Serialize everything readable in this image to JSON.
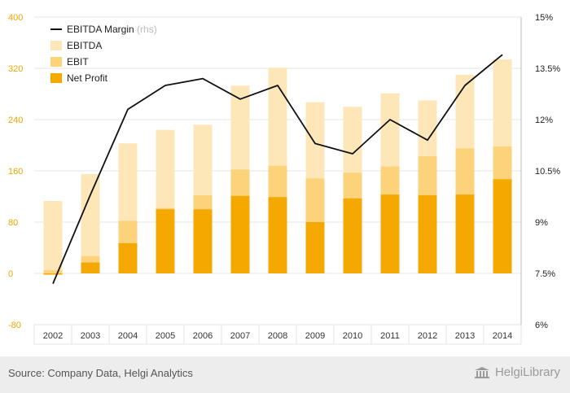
{
  "chart_data": {
    "type": "bar",
    "categories": [
      "2002",
      "2003",
      "2004",
      "2005",
      "2006",
      "2007",
      "2008",
      "2009",
      "2010",
      "2011",
      "2012",
      "2013",
      "2014"
    ],
    "series": [
      {
        "name": "EBITDA",
        "type": "bar",
        "color": "#fde7b8",
        "values": [
          113,
          155,
          203,
          224,
          232,
          293,
          321,
          267,
          260,
          281,
          270,
          310,
          334
        ]
      },
      {
        "name": "EBIT",
        "type": "bar",
        "color": "#fcd27a",
        "values": [
          5,
          27,
          82,
          102,
          122,
          162,
          168,
          148,
          157,
          167,
          183,
          195,
          198
        ]
      },
      {
        "name": "Net Profit",
        "type": "bar",
        "color": "#f5a800",
        "values": [
          -2,
          17,
          47,
          100,
          100,
          121,
          119,
          80,
          117,
          123,
          122,
          123,
          147
        ]
      },
      {
        "name": "EBITDA Margin",
        "name_suffix": "(rhs)",
        "type": "line",
        "axis": "right",
        "color": "#111111",
        "values": [
          7.2,
          9.8,
          12.3,
          13.0,
          13.2,
          12.6,
          13.0,
          11.3,
          11.0,
          12.0,
          11.4,
          13.0,
          13.9
        ]
      }
    ],
    "y_left": {
      "min": -80,
      "max": 400,
      "ticks": [
        -80,
        0,
        80,
        160,
        240,
        320,
        400
      ],
      "color": "#f0a500"
    },
    "y_right": {
      "min": 6,
      "max": 15,
      "ticks": [
        6,
        7.5,
        9,
        10.5,
        12,
        13.5,
        15
      ],
      "unit": "%"
    },
    "grid": true,
    "legend_position": "top-left"
  },
  "footer": {
    "source": "Source: Company Data, Helgi Analytics",
    "brand": "HelgiLibrary",
    "brand_icon": "library-building-icon"
  }
}
